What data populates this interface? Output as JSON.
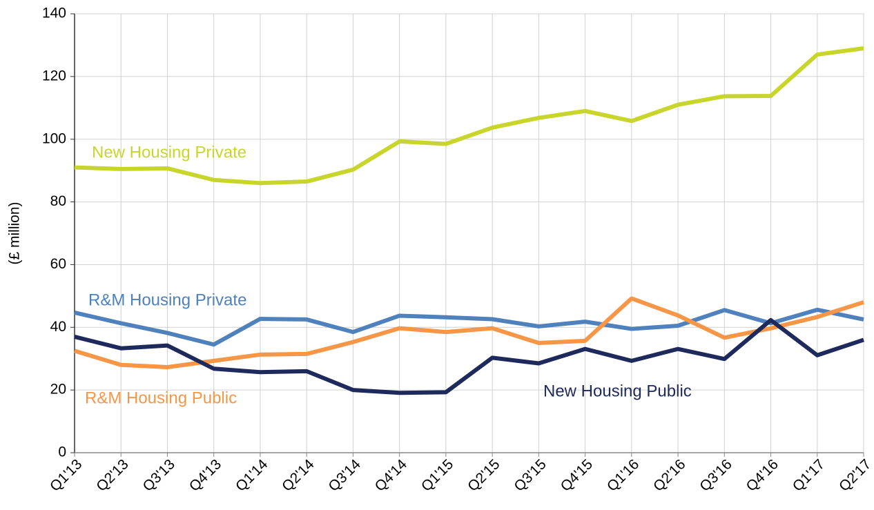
{
  "chart_data": {
    "type": "line",
    "ylabel": "(£ million)",
    "categories": [
      "Q1'13",
      "Q2'13",
      "Q3'13",
      "Q4'13",
      "Q1'14",
      "Q2'14",
      "Q3'14",
      "Q4'14",
      "Q1'15",
      "Q2'15",
      "Q3'15",
      "Q4'15",
      "Q1'16",
      "Q2'16",
      "Q3'16",
      "Q4'16",
      "Q1'17",
      "Q2'17"
    ],
    "series": [
      {
        "name": "New Housing Private",
        "color": "#c8d62b",
        "values": [
          91,
          90.5,
          90.7,
          87,
          86,
          86.5,
          90.3,
          99.3,
          98.5,
          103.7,
          106.8,
          109,
          105.8,
          111,
          113.7,
          113.8,
          127,
          129
        ]
      },
      {
        "name": "R&M Housing Private",
        "color": "#4f81bd",
        "values": [
          44.7,
          41.3,
          38.2,
          34.5,
          42.7,
          42.5,
          38.5,
          43.7,
          43.2,
          42.6,
          40.3,
          41.8,
          39.5,
          40.5,
          45.5,
          41.3,
          45.6,
          42.5
        ]
      },
      {
        "name": "R&M Housing Public",
        "color": "#f79646",
        "values": [
          32.5,
          28,
          27.3,
          29.3,
          31.3,
          31.5,
          35.3,
          39.7,
          38.5,
          39.7,
          35,
          35.7,
          49.2,
          43.8,
          36.7,
          39.7,
          43.3,
          48
        ]
      },
      {
        "name": "New Housing Public",
        "color": "#1f2a5c",
        "values": [
          37,
          33.3,
          34.2,
          26.8,
          25.7,
          26,
          20,
          19.1,
          19.3,
          30.3,
          28.5,
          33.1,
          29.3,
          33.1,
          29.9,
          42.3,
          31.1,
          36
        ]
      }
    ],
    "ylim": [
      0,
      140
    ],
    "yticks": [
      0,
      20,
      40,
      60,
      80,
      100,
      120,
      140
    ],
    "grid": true
  }
}
